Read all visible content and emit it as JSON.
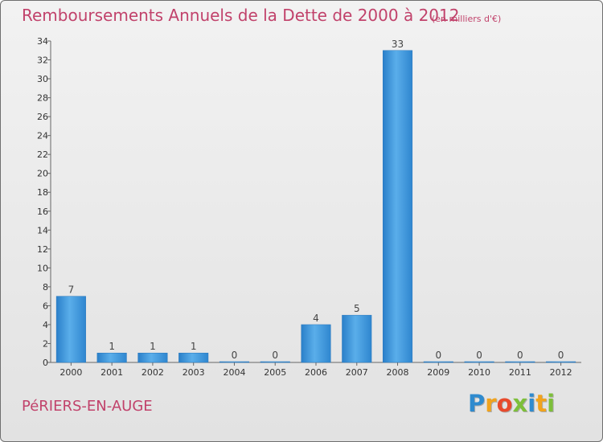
{
  "chart_data": {
    "type": "bar",
    "title": "Remboursements Annuels de la Dette de 2000 à 2012",
    "unit_note": "(en milliers d'€)",
    "categories": [
      "2000",
      "2001",
      "2002",
      "2003",
      "2004",
      "2005",
      "2006",
      "2007",
      "2008",
      "2009",
      "2010",
      "2011",
      "2012"
    ],
    "values": [
      7,
      1,
      1,
      1,
      0,
      0,
      4,
      5,
      33,
      0,
      0,
      0,
      0
    ],
    "ylim": [
      0,
      34
    ],
    "yticks": [
      0,
      2,
      4,
      6,
      8,
      10,
      12,
      14,
      16,
      18,
      20,
      22,
      24,
      26,
      28,
      30,
      32,
      34
    ],
    "xlabel": "",
    "ylabel": "",
    "grid": false,
    "bar_color": "#3b8fd6"
  },
  "footer": {
    "commune": "PéRIERS-EN-AUGE",
    "brand_letters": [
      {
        "ch": "P",
        "color": "#2f8bcf"
      },
      {
        "ch": "r",
        "color": "#f1a31d"
      },
      {
        "ch": "o",
        "color": "#e84a2c"
      },
      {
        "ch": "x",
        "color": "#7dbf3a"
      },
      {
        "ch": "i",
        "color": "#2f8bcf"
      },
      {
        "ch": "t",
        "color": "#f1a31d"
      },
      {
        "ch": "i",
        "color": "#7dbf3a"
      }
    ]
  }
}
